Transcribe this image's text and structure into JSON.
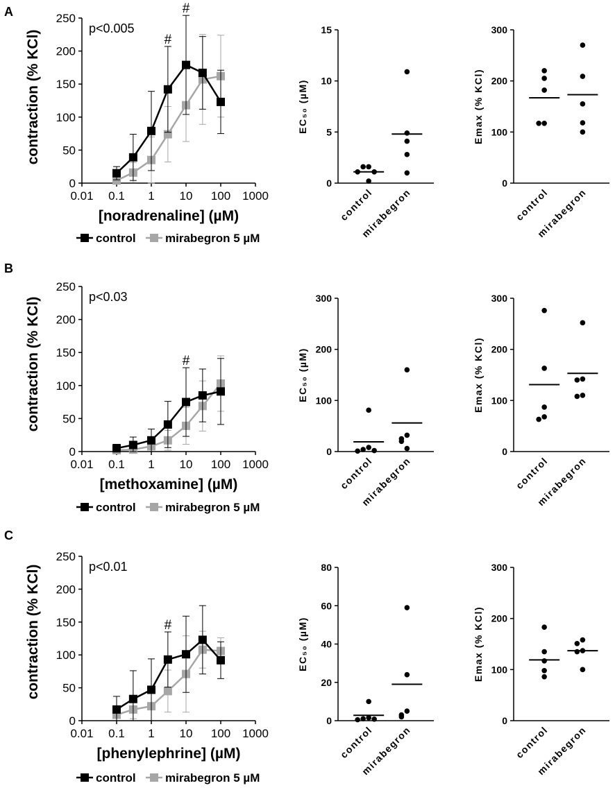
{
  "panels": [
    {
      "label": "A",
      "curve": {
        "type": "line",
        "pvalue": "p<0.005",
        "agonist": "[noradrenaline] (µM)",
        "ylabel": "contraction (% KCl)",
        "yticks": [
          "0",
          "50",
          "100",
          "150",
          "200",
          "250"
        ],
        "xticks": [
          "0.01",
          "0.1",
          "1",
          "10",
          "100",
          "1000"
        ],
        "ylim": [
          0,
          250
        ],
        "xlim_log10": [
          -2,
          3
        ],
        "x": [
          0.1,
          0.3,
          1,
          3,
          10,
          30,
          100
        ],
        "series": [
          {
            "name": "control",
            "color": "#000000",
            "values": [
              15,
              39,
              79,
              142,
              179,
              167,
              123
            ],
            "err": [
              10,
              35,
              60,
              65,
              75,
              55,
              48
            ]
          },
          {
            "name": "mirabegron 5 µM",
            "color": "#a6a6a6",
            "values": [
              4,
              16,
              35,
              74,
              118,
              157,
              162
            ],
            "err": [
              5,
              15,
              35,
              42,
              55,
              68,
              62
            ]
          }
        ],
        "markers": [
          {
            "text": "#",
            "x": 3,
            "y": 142,
            "dy": 65
          },
          {
            "text": "#",
            "x": 10,
            "y": 179,
            "dy": 75
          }
        ],
        "legend": [
          "control",
          "mirabegron 5 µM"
        ]
      },
      "ec50": {
        "type": "scatter",
        "ylabel": "EC₅₀ (µM)",
        "yticks": [
          "0",
          "5",
          "10",
          "15"
        ],
        "ylim": [
          0,
          15
        ],
        "categories": [
          "control",
          "mirabegron"
        ],
        "points": [
          [
            1.6,
            1.6,
            1.1,
            1.1,
            0.2
          ],
          [
            10.9,
            4.9,
            4.1,
            2.8,
            1.0
          ]
        ],
        "means": [
          1.1,
          4.8
        ]
      },
      "emax": {
        "type": "scatter",
        "ylabel": "Emax (% KCl)",
        "yticks": [
          "0",
          "100",
          "200",
          "300"
        ],
        "ylim": [
          0,
          300
        ],
        "categories": [
          "control",
          "mirabegron"
        ],
        "points": [
          [
            220,
            205,
            182,
            117,
            117
          ],
          [
            270,
            209,
            155,
            118,
            100
          ]
        ],
        "means": [
          167,
          173
        ]
      }
    },
    {
      "label": "B",
      "curve": {
        "type": "line",
        "pvalue": "p<0.03",
        "agonist": "[methoxamine] (µM)",
        "ylabel": "contraction (% KCl)",
        "yticks": [
          "0",
          "50",
          "100",
          "150",
          "200",
          "250"
        ],
        "xticks": [
          "0.01",
          "0.1",
          "1",
          "10",
          "100",
          "1000"
        ],
        "ylim": [
          0,
          250
        ],
        "xlim_log10": [
          -2,
          3
        ],
        "x": [
          0.1,
          0.3,
          1,
          3,
          10,
          30,
          100
        ],
        "series": [
          {
            "name": "control",
            "color": "#000000",
            "values": [
              5,
              10,
              17,
              41,
              75,
              85,
              91
            ],
            "err": [
              6,
              12,
              17,
              35,
              52,
              40,
              50
            ]
          },
          {
            "name": "mirabegron 5 µM",
            "color": "#a6a6a6",
            "values": [
              2,
              3,
              8,
              17,
              39,
              69,
              103
            ],
            "err": [
              3,
              4,
              8,
              15,
              28,
              38,
              42
            ]
          }
        ],
        "markers": [
          {
            "text": "#",
            "x": 10,
            "y": 75,
            "dy": 52
          }
        ],
        "legend": [
          "control",
          "mirabegron 5 µM"
        ]
      },
      "ec50": {
        "type": "scatter",
        "ylabel": "EC₅₀ (µM)",
        "yticks": [
          "0",
          "100",
          "200",
          "300"
        ],
        "ylim": [
          0,
          300
        ],
        "categories": [
          "control",
          "mirabegron"
        ],
        "points": [
          [
            81,
            8,
            4,
            2,
            1
          ],
          [
            160,
            32,
            25,
            20,
            6
          ]
        ],
        "means": [
          19,
          56
        ]
      },
      "emax": {
        "type": "scatter",
        "ylabel": "Emax (% KCl)",
        "yticks": [
          "0",
          "100",
          "200",
          "300"
        ],
        "ylim": [
          0,
          300
        ],
        "categories": [
          "control",
          "mirabegron"
        ],
        "points": [
          [
            276,
            163,
            87,
            68,
            63
          ],
          [
            252,
            142,
            140,
            110,
            108
          ]
        ],
        "means": [
          131,
          153
        ]
      }
    },
    {
      "label": "C",
      "curve": {
        "type": "line",
        "pvalue": "p<0.01",
        "agonist": "[phenylephrine] (µM)",
        "ylabel": "contraction (% KCl)",
        "yticks": [
          "0",
          "50",
          "100",
          "150",
          "200",
          "250"
        ],
        "xticks": [
          "0.01",
          "0.1",
          "1",
          "10",
          "100",
          "1000"
        ],
        "ylim": [
          0,
          250
        ],
        "xlim_log10": [
          -2,
          3
        ],
        "x": [
          0.1,
          0.3,
          1,
          3,
          10,
          30,
          100
        ],
        "series": [
          {
            "name": "control",
            "color": "#000000",
            "values": [
              17,
              33,
              47,
              93,
              101,
              123,
              92
            ],
            "err": [
              20,
              43,
              47,
              42,
              58,
              52,
              28
            ]
          },
          {
            "name": "mirabegron 5 µM",
            "color": "#a6a6a6",
            "values": [
              9,
              17,
              22,
              45,
              71,
              108,
              106
            ],
            "err": [
              10,
              14,
              22,
              32,
              58,
              28,
              20
            ]
          }
        ],
        "markers": [
          {
            "text": "#",
            "x": 3,
            "y": 93,
            "dy": 42
          }
        ],
        "legend": [
          "control",
          "mirabegron 5 µM"
        ]
      },
      "ec50": {
        "type": "scatter",
        "ylabel": "EC₅₀ (µM)",
        "yticks": [
          "0",
          "20",
          "40",
          "60",
          "80"
        ],
        "ylim": [
          0,
          80
        ],
        "categories": [
          "control",
          "mirabegron"
        ],
        "points": [
          [
            10,
            1.5,
            1,
            0.8,
            0.5
          ],
          [
            59,
            24,
            5,
            3,
            2
          ]
        ],
        "means": [
          2.8,
          19
        ]
      },
      "emax": {
        "type": "scatter",
        "ylabel": "Emax (% KCl)",
        "yticks": [
          "0",
          "100",
          "200",
          "300"
        ],
        "ylim": [
          0,
          300
        ],
        "categories": [
          "control",
          "mirabegron"
        ],
        "points": [
          [
            183,
            135,
            117,
            98,
            86
          ],
          [
            158,
            151,
            137,
            135,
            100
          ]
        ],
        "means": [
          119,
          137
        ]
      }
    }
  ]
}
